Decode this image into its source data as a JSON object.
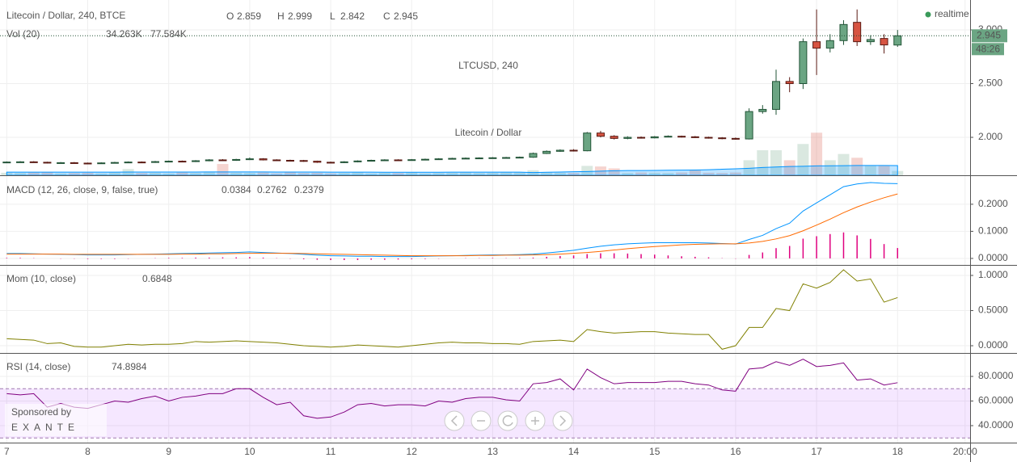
{
  "chart_data": [
    {
      "type": "candlestick",
      "title": "Litecoin / Dollar, 240, BTCE",
      "watermark": "LTCUSD, 240",
      "watermark_subtitle": "Litecoin / Dollar",
      "realtime": "realtime",
      "countdown": "48:26",
      "sponsor": "Sponsored by",
      "sponsor_name": "EXANTE",
      "ohlc_labels": [
        "O",
        "H",
        "L",
        "C"
      ],
      "colors": {
        "up": "#6ba583",
        "down": "#d75442",
        "up_border": "#225437",
        "down_border": "#5b1a13"
      },
      "x": [
        0,
        4,
        8,
        12,
        16,
        20,
        24,
        28,
        32,
        36,
        40,
        44,
        48,
        52,
        56,
        60,
        64,
        68,
        72,
        76,
        80,
        84,
        88,
        92,
        96,
        100,
        104,
        108,
        112,
        116,
        120,
        124,
        128,
        132,
        136,
        140,
        144,
        148,
        152,
        156,
        160,
        164,
        168,
        172,
        176,
        180,
        184,
        188,
        192,
        196,
        200,
        204,
        208,
        212,
        216,
        220,
        224,
        228,
        232,
        236,
        240,
        244,
        248,
        252,
        256,
        260,
        264
      ],
      "open": [
        1.765,
        1.77,
        1.772,
        1.768,
        1.762,
        1.764,
        1.76,
        1.758,
        1.762,
        1.766,
        1.77,
        1.768,
        1.774,
        1.778,
        1.775,
        1.782,
        1.79,
        1.786,
        1.794,
        1.8,
        1.79,
        1.786,
        1.784,
        1.778,
        1.768,
        1.765,
        1.772,
        1.78,
        1.786,
        1.79,
        1.788,
        1.792,
        1.796,
        1.8,
        1.804,
        1.806,
        1.808,
        1.81,
        1.812,
        1.815,
        1.85,
        1.87,
        1.88,
        1.875,
        2.04,
        2.01,
        1.99,
        2.0,
        1.995,
        2.005,
        2.01,
        2.005,
        2.0,
        1.995,
        1.99,
        1.985,
        2.24,
        2.26,
        2.52,
        2.5,
        2.89,
        2.83,
        2.9,
        3.07,
        2.89,
        2.92,
        2.859
      ],
      "high": [
        1.776,
        1.778,
        1.778,
        1.773,
        1.77,
        1.77,
        1.765,
        1.768,
        1.772,
        1.776,
        1.776,
        1.78,
        1.784,
        1.784,
        1.788,
        1.797,
        1.797,
        1.8,
        1.812,
        1.806,
        1.796,
        1.792,
        1.79,
        1.783,
        1.774,
        1.778,
        1.786,
        1.792,
        1.796,
        1.796,
        1.798,
        1.802,
        1.806,
        1.81,
        1.812,
        1.814,
        1.816,
        1.818,
        1.821,
        1.858,
        1.878,
        1.888,
        1.89,
        2.05,
        2.06,
        2.02,
        2.01,
        2.008,
        2.012,
        2.018,
        2.016,
        2.012,
        2.006,
        2.002,
        1.998,
        2.27,
        2.3,
        2.63,
        2.56,
        2.92,
        3.19,
        2.96,
        3.09,
        3.19,
        2.95,
        2.96,
        2.999
      ],
      "low": [
        1.76,
        1.765,
        1.763,
        1.757,
        1.757,
        1.755,
        1.752,
        1.753,
        1.757,
        1.761,
        1.762,
        1.763,
        1.769,
        1.77,
        1.77,
        1.777,
        1.78,
        1.781,
        1.789,
        1.785,
        1.781,
        1.778,
        1.772,
        1.762,
        1.758,
        1.76,
        1.767,
        1.775,
        1.781,
        1.782,
        1.783,
        1.787,
        1.791,
        1.795,
        1.799,
        1.801,
        1.803,
        1.805,
        1.807,
        1.81,
        1.845,
        1.865,
        1.868,
        1.87,
        2.0,
        1.98,
        1.982,
        1.988,
        1.99,
        2.0,
        1.998,
        1.994,
        1.988,
        1.982,
        1.978,
        1.98,
        2.22,
        2.21,
        2.42,
        2.45,
        2.58,
        2.79,
        2.86,
        2.85,
        2.86,
        2.78,
        2.842
      ],
      "close": [
        1.77,
        1.772,
        1.768,
        1.762,
        1.764,
        1.76,
        1.758,
        1.762,
        1.766,
        1.77,
        1.768,
        1.774,
        1.778,
        1.775,
        1.782,
        1.79,
        1.786,
        1.794,
        1.8,
        1.79,
        1.786,
        1.784,
        1.778,
        1.768,
        1.765,
        1.772,
        1.78,
        1.786,
        1.79,
        1.788,
        1.792,
        1.796,
        1.8,
        1.804,
        1.806,
        1.808,
        1.81,
        1.812,
        1.815,
        1.85,
        1.87,
        1.88,
        1.875,
        2.04,
        2.01,
        1.99,
        2.0,
        1.995,
        2.005,
        2.01,
        2.005,
        2.0,
        1.995,
        1.99,
        1.985,
        2.24,
        2.26,
        2.52,
        2.5,
        2.89,
        2.83,
        2.9,
        3.05,
        2.89,
        2.91,
        2.86,
        2.945
      ],
      "xlim": [
        -2,
        285.5
      ],
      "xticks": [
        {
          "value": 0,
          "label": "7"
        },
        {
          "value": 24,
          "label": "8"
        },
        {
          "value": 48,
          "label": "9"
        },
        {
          "value": 72,
          "label": "10"
        },
        {
          "value": 96,
          "label": "11"
        },
        {
          "value": 120,
          "label": "12"
        },
        {
          "value": 144,
          "label": "13"
        },
        {
          "value": 168,
          "label": "14"
        },
        {
          "value": 192,
          "label": "15"
        },
        {
          "value": 216,
          "label": "16"
        },
        {
          "value": 240,
          "label": "17"
        },
        {
          "value": 264,
          "label": "18"
        },
        {
          "value": 284,
          "label": "20:00"
        }
      ],
      "ylim": [
        1.647,
        3.278
      ],
      "yticks": [
        {
          "value": 2,
          "label": "2.000"
        },
        {
          "value": 2.5,
          "label": "2.500"
        },
        {
          "value": 3,
          "label": "3.000"
        }
      ],
      "grid": true,
      "volume": {
        "name": "Vol (20)",
        "y2lim": [
          0,
          1400
        ],
        "last_label": "34.263K",
        "values": [
          20,
          18,
          22,
          25,
          15,
          18,
          20,
          15,
          22,
          50,
          18,
          20,
          15,
          22,
          18,
          25,
          90,
          20,
          18,
          22,
          15,
          25,
          18,
          20,
          15,
          18,
          22,
          15,
          20,
          18,
          22,
          15,
          18,
          20,
          22,
          18,
          20,
          25,
          22,
          40,
          22,
          20,
          18,
          75,
          70,
          55,
          18,
          22,
          20,
          18,
          22,
          40,
          20,
          18,
          22,
          120,
          200,
          200,
          120,
          250,
          340,
          120,
          170,
          140,
          80,
          80,
          34.263
        ],
        "ma": {
          "color": "#0094ff",
          "last_label": "77.584K",
          "values": [
            25,
            25,
            25,
            25,
            25,
            25,
            25,
            25,
            25,
            26,
            26,
            26,
            26,
            26,
            26,
            27,
            27,
            27,
            27,
            27,
            26,
            26,
            26,
            26,
            25,
            25,
            25,
            25,
            24,
            24,
            24,
            24,
            24,
            25,
            25,
            25,
            25,
            25,
            25,
            22,
            24,
            26,
            28,
            30,
            33,
            36,
            38,
            38,
            39,
            40,
            41,
            42,
            44,
            48,
            52,
            56,
            62,
            66,
            70,
            72,
            75,
            76,
            77,
            78,
            78,
            78,
            77.584
          ]
        }
      }
    },
    {
      "type": "macd",
      "title": "MACD (12, 26, close, 9, false, true)",
      "ylim": [
        -0.024,
        0.304
      ],
      "yticks": [
        {
          "value": 0,
          "label": "0.0000"
        },
        {
          "value": 0.1,
          "label": "0.1000"
        },
        {
          "value": 0.2,
          "label": "0.2000"
        }
      ],
      "histogram": {
        "color": "#e0007f",
        "values": [
          0.002,
          0.002,
          0.001,
          0,
          -0.001,
          -0.001,
          -0.002,
          -0.002,
          -0.002,
          -0.001,
          0,
          0.001,
          0.002,
          0.002,
          0.003,
          0.003,
          0.004,
          0.004,
          0.005,
          0.003,
          0.001,
          -0.001,
          -0.003,
          -0.005,
          -0.006,
          -0.006,
          -0.006,
          -0.005,
          -0.005,
          -0.004,
          -0.003,
          -0.002,
          -0.001,
          0,
          0.001,
          0.001,
          0.002,
          0.001,
          0.002,
          0.003,
          0.006,
          0.009,
          0.011,
          0.016,
          0.019,
          0.019,
          0.018,
          0.016,
          0.014,
          0.011,
          0.008,
          0.006,
          0.004,
          0.001,
          -0.001,
          0.013,
          0.022,
          0.038,
          0.046,
          0.073,
          0.082,
          0.09,
          0.096,
          0.085,
          0.072,
          0.053,
          0.0384
        ]
      },
      "series": [
        {
          "color": "#0094ff",
          "values": [
            0.018,
            0.018,
            0.017,
            0.016,
            0.015,
            0.014,
            0.013,
            0.013,
            0.013,
            0.014,
            0.015,
            0.016,
            0.017,
            0.018,
            0.019,
            0.02,
            0.021,
            0.022,
            0.024,
            0.022,
            0.02,
            0.018,
            0.015,
            0.012,
            0.01,
            0.009,
            0.008,
            0.008,
            0.007,
            0.007,
            0.007,
            0.008,
            0.009,
            0.01,
            0.011,
            0.012,
            0.013,
            0.013,
            0.014,
            0.016,
            0.02,
            0.025,
            0.03,
            0.038,
            0.045,
            0.05,
            0.054,
            0.056,
            0.058,
            0.058,
            0.058,
            0.058,
            0.057,
            0.055,
            0.053,
            0.07,
            0.085,
            0.11,
            0.13,
            0.175,
            0.205,
            0.235,
            0.265,
            0.275,
            0.28,
            0.277,
            0.2762
          ]
        },
        {
          "color": "#ff6a00",
          "values": [
            0.016,
            0.016,
            0.016,
            0.016,
            0.016,
            0.015,
            0.015,
            0.015,
            0.015,
            0.015,
            0.015,
            0.015,
            0.015,
            0.016,
            0.016,
            0.017,
            0.017,
            0.018,
            0.019,
            0.019,
            0.019,
            0.019,
            0.018,
            0.017,
            0.016,
            0.015,
            0.014,
            0.013,
            0.012,
            0.011,
            0.01,
            0.01,
            0.01,
            0.01,
            0.01,
            0.011,
            0.011,
            0.012,
            0.012,
            0.013,
            0.014,
            0.016,
            0.019,
            0.022,
            0.026,
            0.031,
            0.036,
            0.04,
            0.044,
            0.047,
            0.05,
            0.052,
            0.053,
            0.054,
            0.054,
            0.057,
            0.063,
            0.072,
            0.084,
            0.102,
            0.123,
            0.145,
            0.169,
            0.19,
            0.208,
            0.224,
            0.2379
          ]
        }
      ]
    },
    {
      "type": "line",
      "title": "Mom (10, close)",
      "ylim": [
        -0.103,
        1.138
      ],
      "yticks": [
        {
          "value": 0,
          "label": "0.0000"
        },
        {
          "value": 0.5,
          "label": "0.5000"
        },
        {
          "value": 1,
          "label": "1.0000"
        }
      ],
      "series": [
        {
          "color": "#808000",
          "values": [
            0.1,
            0.09,
            0.08,
            0.03,
            0.04,
            -0.01,
            -0.02,
            -0.02,
            0.0,
            0.02,
            0.01,
            0.02,
            0.02,
            0.03,
            0.06,
            0.05,
            0.06,
            0.07,
            0.06,
            0.05,
            0.04,
            0.02,
            0.0,
            -0.01,
            -0.02,
            -0.01,
            0.01,
            0.0,
            -0.01,
            -0.02,
            0.0,
            0.02,
            0.04,
            0.05,
            0.04,
            0.04,
            0.03,
            0.03,
            0.02,
            0.06,
            0.07,
            0.08,
            0.06,
            0.23,
            0.2,
            0.18,
            0.19,
            0.2,
            0.2,
            0.18,
            0.17,
            0.16,
            0.16,
            -0.05,
            0.0,
            0.26,
            0.26,
            0.53,
            0.5,
            0.88,
            0.82,
            0.9,
            1.08,
            0.92,
            0.95,
            0.62,
            0.6848
          ]
        }
      ]
    },
    {
      "type": "line",
      "title": "RSI (14, close)",
      "ylim": [
        26.2,
        98.4
      ],
      "yticks": [
        {
          "value": 40,
          "label": "40.0000"
        },
        {
          "value": 60,
          "label": "60.0000"
        },
        {
          "value": 80,
          "label": "80.0000"
        }
      ],
      "band": [
        30,
        70
      ],
      "series": [
        {
          "color": "#800080",
          "values": [
            66,
            65,
            66,
            55,
            58,
            55,
            54,
            57,
            60,
            59,
            62,
            64,
            60,
            63,
            64,
            66,
            66,
            70,
            70,
            63,
            57,
            59,
            48,
            46,
            47,
            51,
            57,
            58,
            56,
            57,
            57,
            56,
            60,
            59,
            62,
            63,
            63,
            61,
            60,
            74,
            75,
            78,
            69,
            86,
            79,
            74,
            75,
            75,
            75,
            76,
            76,
            74,
            73,
            69,
            68,
            86,
            87,
            92,
            89,
            94,
            88,
            89,
            91,
            77,
            78,
            73,
            74.8984
          ]
        }
      ]
    }
  ]
}
